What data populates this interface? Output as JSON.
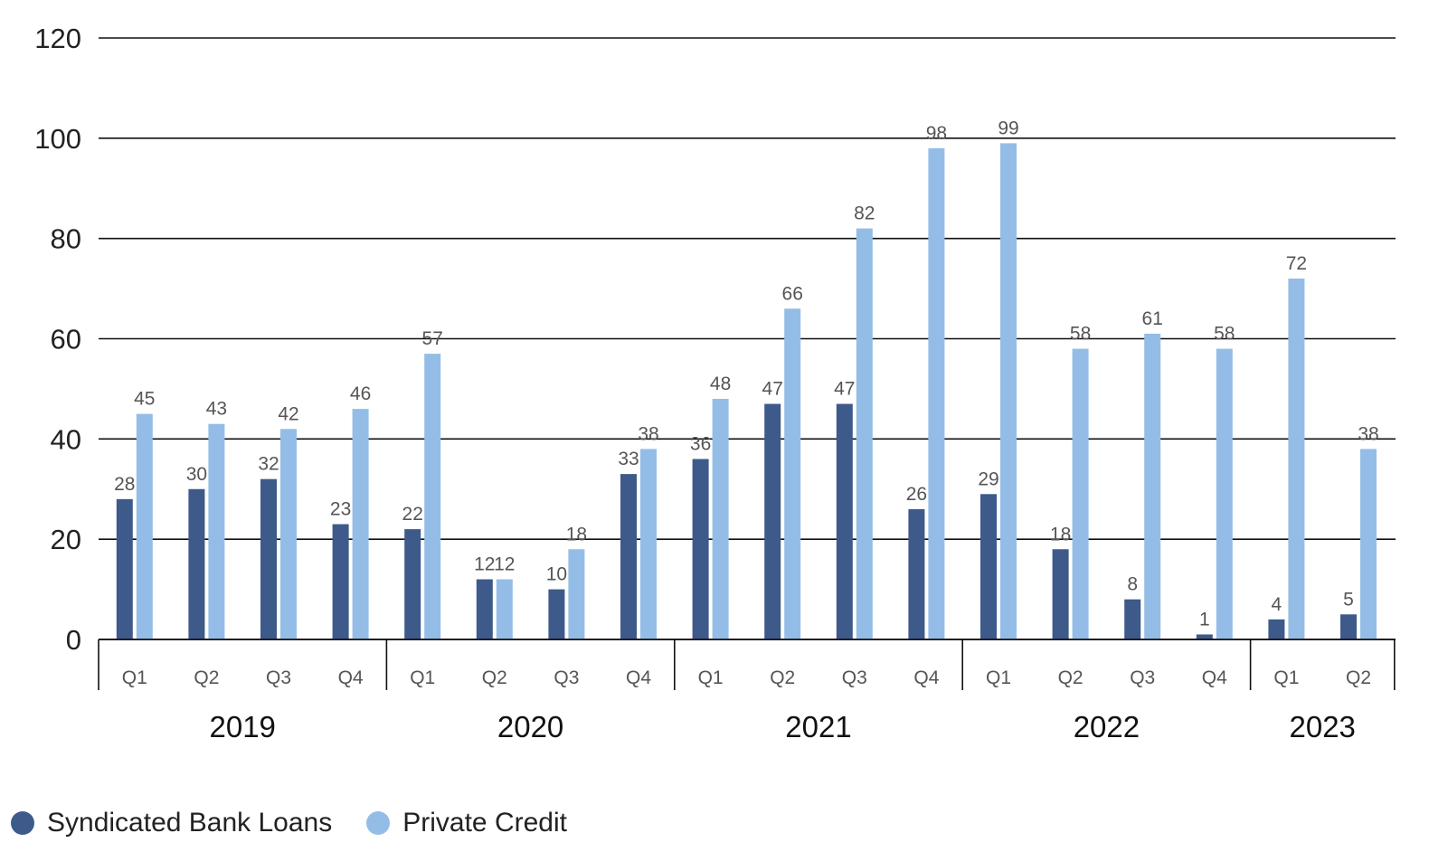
{
  "chart_data": {
    "type": "bar",
    "title": "",
    "xlabel": "",
    "ylabel": "",
    "ylim": [
      0,
      120
    ],
    "yticks": [
      0,
      20,
      40,
      60,
      80,
      100,
      120
    ],
    "grid": true,
    "legend_position": "bottom-left",
    "groups": [
      {
        "year": "2019",
        "quarters": [
          "Q1",
          "Q2",
          "Q3",
          "Q4"
        ]
      },
      {
        "year": "2020",
        "quarters": [
          "Q1",
          "Q2",
          "Q3",
          "Q4"
        ]
      },
      {
        "year": "2021",
        "quarters": [
          "Q1",
          "Q2",
          "Q3",
          "Q4"
        ]
      },
      {
        "year": "2022",
        "quarters": [
          "Q1",
          "Q2",
          "Q3",
          "Q4"
        ]
      },
      {
        "year": "2023",
        "quarters": [
          "Q1",
          "Q2"
        ]
      }
    ],
    "series": [
      {
        "name": "Syndicated Bank Loans",
        "color": "#3d5a8a",
        "values": [
          28,
          30,
          32,
          23,
          22,
          12,
          10,
          33,
          36,
          47,
          47,
          26,
          29,
          18,
          8,
          1,
          4,
          5
        ]
      },
      {
        "name": "Private Credit",
        "color": "#93bde6",
        "values": [
          45,
          43,
          42,
          46,
          57,
          12,
          18,
          38,
          48,
          66,
          82,
          98,
          99,
          58,
          61,
          58,
          72,
          38
        ]
      }
    ]
  }
}
